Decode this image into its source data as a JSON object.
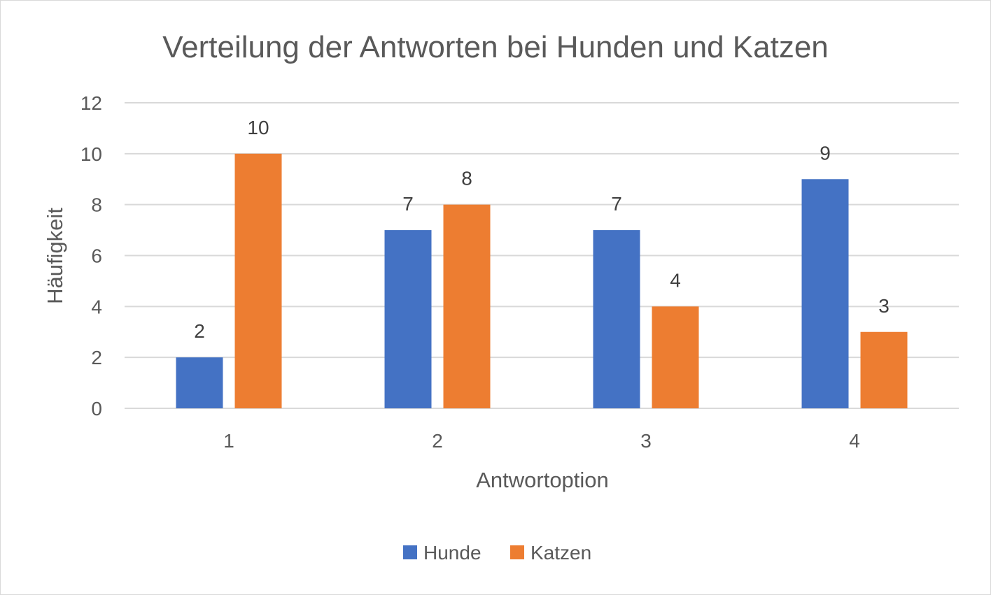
{
  "chart_data": {
    "type": "bar",
    "title": "Verteilung der Antworten bei Hunden und Katzen",
    "xlabel": "Antwortoption",
    "ylabel": "Häufigkeit",
    "categories": [
      "1",
      "2",
      "3",
      "4"
    ],
    "series": [
      {
        "name": "Hunde",
        "values": [
          2,
          7,
          7,
          9
        ],
        "color": "#4472c4"
      },
      {
        "name": "Katzen",
        "values": [
          10,
          8,
          4,
          3
        ],
        "color": "#ed7d31"
      }
    ],
    "ylim": [
      0,
      12
    ],
    "yticks": [
      "0",
      "2",
      "4",
      "6",
      "8",
      "10",
      "12"
    ],
    "grid": true,
    "data_labels": true,
    "legend_position": "bottom"
  }
}
